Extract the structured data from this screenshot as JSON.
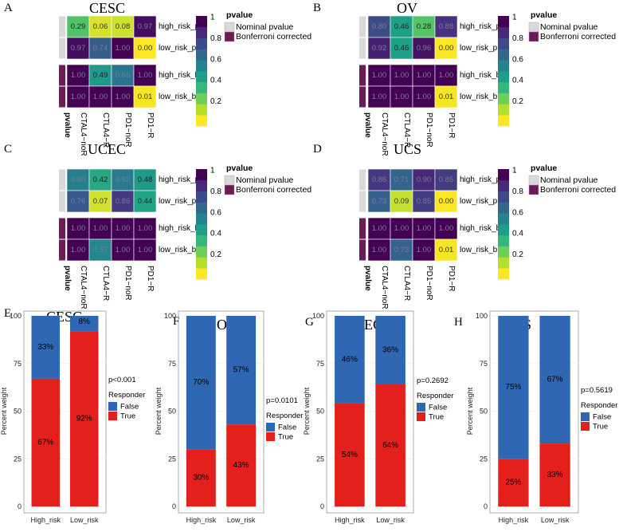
{
  "colorbar": {
    "ticks": [
      "1",
      "0.8",
      "0.6",
      "0.4",
      "0.2"
    ],
    "colors": [
      "#fde725",
      "#b5de2b",
      "#6ece58",
      "#35b779",
      "#1f9e89",
      "#26828e",
      "#31688e",
      "#3e4989",
      "#482878",
      "#440154"
    ]
  },
  "legend_heat": {
    "title": "pvalue",
    "items": [
      {
        "label": "Nominal pvalue",
        "color": "#d9d9d9"
      },
      {
        "label": "Bonferroni corrected",
        "color": "#6b1c57"
      }
    ]
  },
  "annotation_label": "pvalue",
  "legend_bar": {
    "title": "Responder",
    "items": [
      {
        "label": "False",
        "color": "#2f67b2"
      },
      {
        "label": "True",
        "color": "#e3201b"
      }
    ]
  },
  "chart_data": [
    {
      "type": "heatmap",
      "panel": "A",
      "title": "CESC",
      "rows": [
        "high_risk_p",
        "low_risk_p",
        "high_risk_b",
        "low_risk_b"
      ],
      "columns": [
        "CTAL4−noR",
        "CTLA4−R",
        "PD1−noR",
        "PD1−R"
      ],
      "values": [
        [
          "0.29",
          "0.06",
          "0.08",
          "0.97"
        ],
        [
          "0.97",
          "0.74",
          "1.00",
          "0.00"
        ],
        [
          "1.00",
          "0.49",
          "0.65",
          "1.00"
        ],
        [
          "1.00",
          "1.00",
          "1.00",
          "0.01"
        ]
      ],
      "value_range": [
        0,
        1
      ]
    },
    {
      "type": "heatmap",
      "panel": "B",
      "title": "OV",
      "rows": [
        "high_risk_p",
        "low_risk_p",
        "high_risk_b",
        "low_risk_b"
      ],
      "columns": [
        "CTAL4−noR",
        "CTLA4−R",
        "PD1−noR",
        "PD1−R"
      ],
      "values": [
        [
          "0.80",
          "0.46",
          "0.28",
          "0.88"
        ],
        [
          "0.92",
          "0.46",
          "0.96",
          "0.00"
        ],
        [
          "1.00",
          "1.00",
          "1.00",
          "1.00"
        ],
        [
          "1.00",
          "1.00",
          "1.00",
          "0.01"
        ]
      ],
      "value_range": [
        0,
        1
      ]
    },
    {
      "type": "heatmap",
      "panel": "C",
      "title": "UCEC",
      "rows": [
        "high_risk_p",
        "low_risk_p",
        "high_risk_b",
        "low_risk_b"
      ],
      "columns": [
        "CTAL4−noR",
        "CTLA4−R",
        "PD1−noR",
        "PD1−R"
      ],
      "values": [
        [
          "0.60",
          "0.42",
          "0.62",
          "0.48"
        ],
        [
          "0.76",
          "0.07",
          "0.86",
          "0.44"
        ],
        [
          "1.00",
          "1.00",
          "1.00",
          "1.00"
        ],
        [
          "1.00",
          "0.57",
          "1.00",
          "1.00"
        ]
      ],
      "value_range": [
        0,
        1
      ]
    },
    {
      "type": "heatmap",
      "panel": "D",
      "title": "UCS",
      "rows": [
        "high_risk_p",
        "low_risk_p",
        "high_risk_b",
        "low_risk_b"
      ],
      "columns": [
        "CTAL4−noR",
        "CTLA4−R",
        "PD1−noR",
        "PD1−R"
      ],
      "values": [
        [
          "0.86",
          "0.71",
          "0.90",
          "0.85"
        ],
        [
          "0.73",
          "0.09",
          "0.85",
          "0.00"
        ],
        [
          "1.00",
          "1.00",
          "1.00",
          "1.00"
        ],
        [
          "1.00",
          "0.73",
          "1.00",
          "0.01"
        ]
      ],
      "value_range": [
        0,
        1
      ]
    },
    {
      "type": "bar",
      "stacked": true,
      "panel": "E",
      "title": "CESC",
      "categories": [
        "High_risk",
        "Low_risk"
      ],
      "series": [
        {
          "name": "True",
          "values": [
            67,
            92
          ]
        },
        {
          "name": "False",
          "values": [
            33,
            8
          ]
        }
      ],
      "labels": {
        "True": [
          "67%",
          "92%"
        ],
        "False": [
          "33%",
          "8%"
        ]
      },
      "ylabel": "Percent weight",
      "ylim": [
        0,
        100
      ],
      "yticks": [
        "0",
        "25",
        "50",
        "75",
        "100"
      ],
      "pvalue": "p<0.001"
    },
    {
      "type": "bar",
      "stacked": true,
      "panel": "F",
      "title": "OV",
      "categories": [
        "High_risk",
        "Low_risk"
      ],
      "series": [
        {
          "name": "True",
          "values": [
            30,
            43
          ]
        },
        {
          "name": "False",
          "values": [
            70,
            57
          ]
        }
      ],
      "labels": {
        "True": [
          "30%",
          "43%"
        ],
        "False": [
          "70%",
          "57%"
        ]
      },
      "ylabel": "Percent weight",
      "ylim": [
        0,
        100
      ],
      "yticks": [
        "0",
        "25",
        "50",
        "75",
        "100"
      ],
      "pvalue": "p=0.0101"
    },
    {
      "type": "bar",
      "stacked": true,
      "panel": "G",
      "title": "UCEC",
      "categories": [
        "High_risk",
        "Low_risk"
      ],
      "series": [
        {
          "name": "True",
          "values": [
            54,
            64
          ]
        },
        {
          "name": "False",
          "values": [
            46,
            36
          ]
        }
      ],
      "labels": {
        "True": [
          "54%",
          "64%"
        ],
        "False": [
          "46%",
          "36%"
        ]
      },
      "ylabel": "Percent weight",
      "ylim": [
        0,
        100
      ],
      "yticks": [
        "0",
        "25",
        "50",
        "75",
        "100"
      ],
      "pvalue": "p=0.2692"
    },
    {
      "type": "bar",
      "stacked": true,
      "panel": "H",
      "title": "UCS",
      "categories": [
        "High_risk",
        "Low_risk"
      ],
      "series": [
        {
          "name": "True",
          "values": [
            25,
            33
          ]
        },
        {
          "name": "False",
          "values": [
            75,
            67
          ]
        }
      ],
      "labels": {
        "True": [
          "25%",
          "33%"
        ],
        "False": [
          "75%",
          "67%"
        ]
      },
      "ylabel": "Percent weight",
      "ylim": [
        0,
        100
      ],
      "yticks": [
        "0",
        "25",
        "50",
        "75",
        "100"
      ],
      "pvalue": "p=0.5619"
    }
  ]
}
